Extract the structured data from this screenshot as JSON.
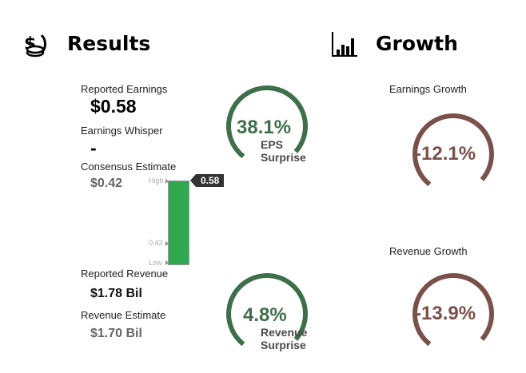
{
  "results": {
    "title": "Results",
    "icon": "money-coins-icon",
    "reported_earnings": {
      "label": "Reported Earnings",
      "value": "$0.58"
    },
    "earnings_whisper": {
      "label": "Earnings Whisper",
      "value": "-"
    },
    "consensus_estimate": {
      "label": "Consensus Estimate",
      "value": "$0.42"
    },
    "reported_revenue": {
      "label": "Reported Revenue",
      "value": "$1.78 Bil"
    },
    "revenue_estimate": {
      "label": "Revenue Estimate",
      "value": "$1.70 Bil"
    },
    "eps_surprise": {
      "value": "38.1%",
      "line1": "EPS",
      "line2": "Surprise",
      "fraction": 0.76,
      "color": "#3f6f4a"
    },
    "revenue_surprise": {
      "value": "4.8%",
      "line1": "Revenue",
      "line2": "Surprise",
      "fraction": 0.76,
      "color": "#3f6f4a"
    }
  },
  "range_bar": {
    "high_label": "High",
    "mid_label": "0.42",
    "low_label": "Low",
    "marker_label": "0.58",
    "fill_fraction": 1.0,
    "bar_color": "#2fa84f"
  },
  "growth": {
    "title": "Growth",
    "icon": "bar-chart-icon",
    "earnings_growth": {
      "label": "Earnings Growth",
      "value": "-12.1%",
      "fraction": 0.76,
      "color": "#7a514a"
    },
    "revenue_growth": {
      "label": "Revenue Growth",
      "value": "-13.9%",
      "fraction": 0.76,
      "color": "#7a514a"
    }
  }
}
